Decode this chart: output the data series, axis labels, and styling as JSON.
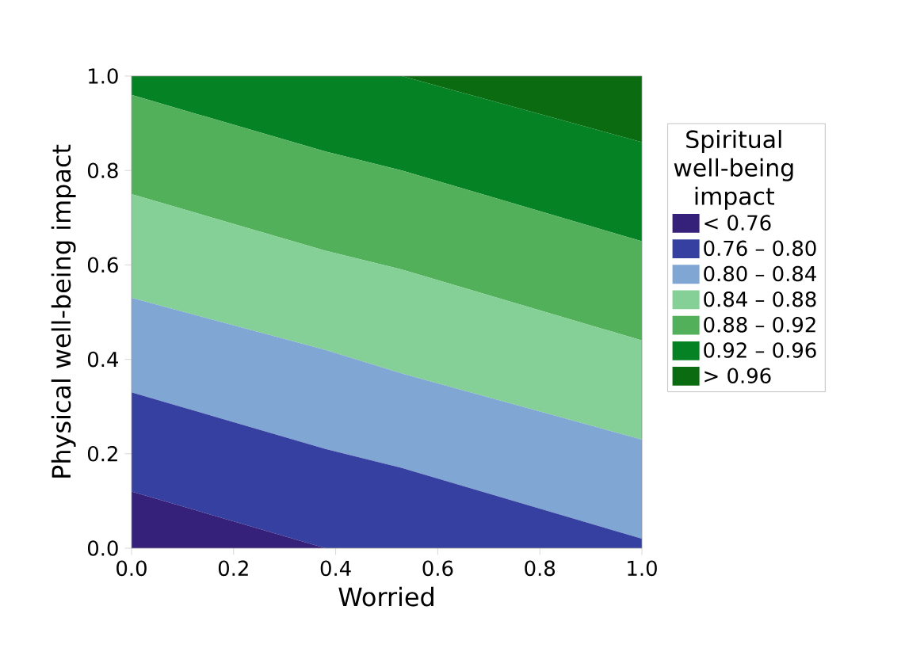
{
  "chart_data": {
    "type": "area",
    "stacked": true,
    "xlabel": "Worried",
    "ylabel": "Physical well-being impact",
    "legend_title": "Spiritual well-being impact",
    "legend": "right",
    "x": [
      0,
      0.38,
      0.53,
      1
    ],
    "series": [
      {
        "name": "< 0.76",
        "color": "#35207a",
        "values": [
          0.12,
          0,
          0,
          0
        ]
      },
      {
        "name": "0.76 – 0.80",
        "color": "#3640a0",
        "values": [
          0.21,
          0.21,
          0.17,
          0.02
        ]
      },
      {
        "name": "0.80 – 0.84",
        "color": "#80a6d4",
        "values": [
          0.2,
          0.21,
          0.2,
          0.21
        ]
      },
      {
        "name": "0.84 – 0.88",
        "color": "#84d096",
        "values": [
          0.22,
          0.21,
          0.22,
          0.21
        ]
      },
      {
        "name": "0.88 – 0.92",
        "color": "#52b05a",
        "values": [
          0.21,
          0.21,
          0.21,
          0.21
        ]
      },
      {
        "name": "0.92 – 0.96",
        "color": "#048224",
        "values": [
          0.04,
          0.16,
          0.2,
          0.21
        ]
      },
      {
        "name": "> 0.96",
        "color": "#0b6b10",
        "values": [
          0,
          0,
          0,
          0.14
        ]
      }
    ],
    "xlim": [
      0,
      1
    ],
    "ylim": [
      0,
      1
    ],
    "xticks": [
      {
        "value": 0,
        "label": "0.0"
      },
      {
        "value": 0.2,
        "label": "0.2"
      },
      {
        "value": 0.4,
        "label": "0.4"
      },
      {
        "value": 0.6,
        "label": "0.6"
      },
      {
        "value": 0.8,
        "label": "0.8"
      },
      {
        "value": 1,
        "label": "1.0"
      }
    ],
    "yticks": [
      {
        "value": 0,
        "label": "0.0"
      },
      {
        "value": 0.2,
        "label": "0.2"
      },
      {
        "value": 0.4,
        "label": "0.4"
      },
      {
        "value": 0.6,
        "label": "0.6"
      },
      {
        "value": 0.8,
        "label": "0.8"
      },
      {
        "value": 1,
        "label": "1.0"
      }
    ]
  }
}
